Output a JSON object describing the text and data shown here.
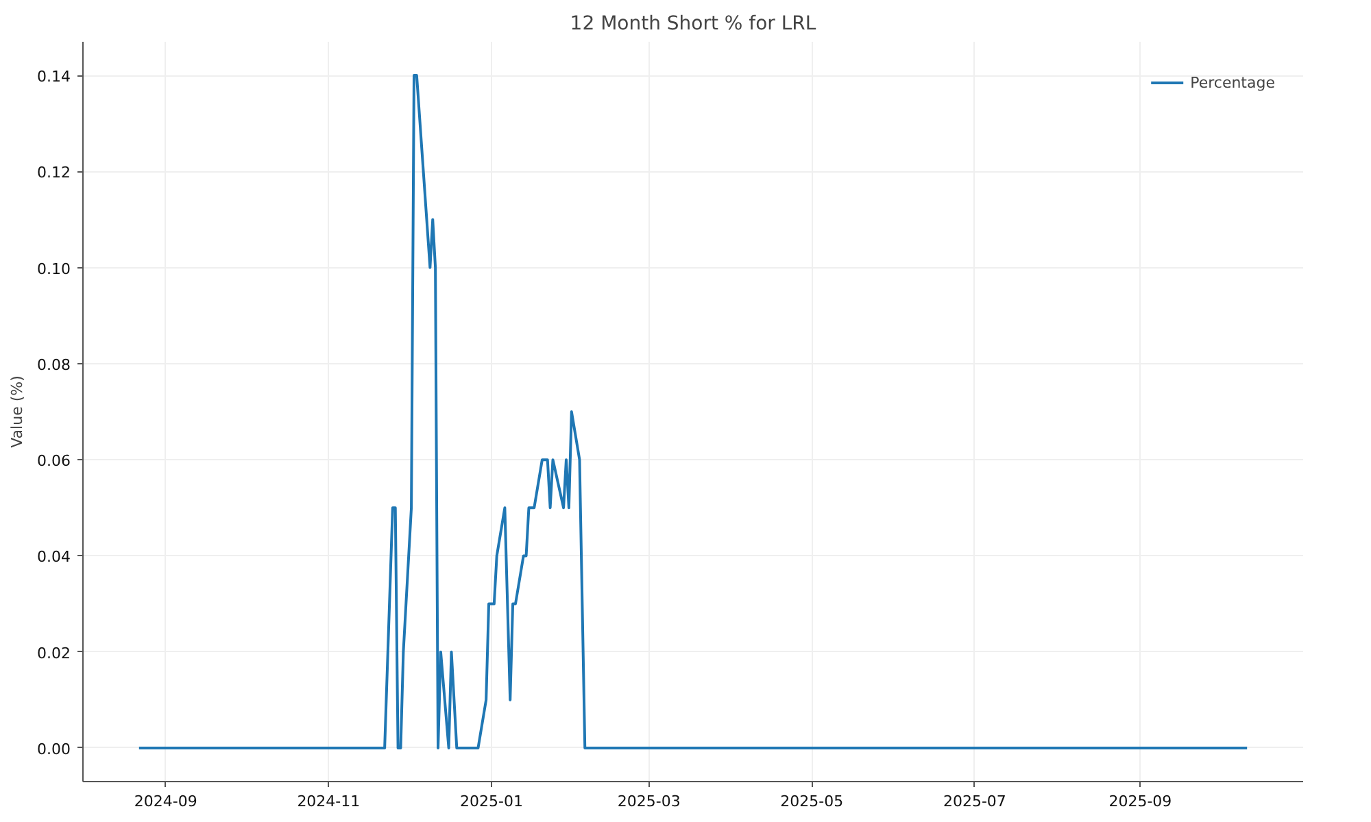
{
  "chart_data": {
    "type": "line",
    "title": "12 Month Short % for LRL",
    "ylabel": "Value (%)",
    "x": [
      "2024-08-22",
      "2024-11-22",
      "2024-11-25",
      "2024-11-26",
      "2024-11-27",
      "2024-11-28",
      "2024-11-29",
      "2024-12-02",
      "2024-12-03",
      "2024-12-04",
      "2024-12-09",
      "2024-12-10",
      "2024-12-11",
      "2024-12-12",
      "2024-12-13",
      "2024-12-16",
      "2024-12-17",
      "2024-12-19",
      "2024-12-27",
      "2024-12-30",
      "2024-12-31",
      "2025-01-02",
      "2025-01-03",
      "2025-01-06",
      "2025-01-08",
      "2025-01-09",
      "2025-01-10",
      "2025-01-13",
      "2025-01-14",
      "2025-01-15",
      "2025-01-17",
      "2025-01-20",
      "2025-01-22",
      "2025-01-23",
      "2025-01-24",
      "2025-01-28",
      "2025-01-29",
      "2025-01-30",
      "2025-01-31",
      "2025-02-03",
      "2025-02-05",
      "2025-10-11"
    ],
    "series": [
      {
        "name": "Percentage",
        "color": "#1f77b4",
        "values": [
          0,
          0,
          0.05,
          0.05,
          0,
          0,
          0.02,
          0.05,
          0.14,
          0.14,
          0.1,
          0.11,
          0.1,
          0,
          0.02,
          0,
          0.02,
          0,
          0,
          0.01,
          0.03,
          0.03,
          0.04,
          0.05,
          0.01,
          0.03,
          0.03,
          0.04,
          0.04,
          0.05,
          0.05,
          0.06,
          0.06,
          0.05,
          0.06,
          0.05,
          0.06,
          0.05,
          0.07,
          0.06,
          0,
          0
        ]
      }
    ],
    "xlim": [
      "2024-08-01",
      "2025-11-01"
    ],
    "xticks": [
      "2024-09",
      "2024-11",
      "2025-01",
      "2025-03",
      "2025-05",
      "2025-07",
      "2025-09"
    ],
    "ylim": [
      -0.007,
      0.147
    ],
    "yticks": [
      {
        "value": 0,
        "label": "0.00"
      },
      0.02,
      0.04,
      0.06,
      0.08,
      {
        "value": 0.1,
        "label": "0.10"
      },
      0.12,
      0.14
    ],
    "grid": true,
    "legend": "top right",
    "line_style": "solid"
  }
}
